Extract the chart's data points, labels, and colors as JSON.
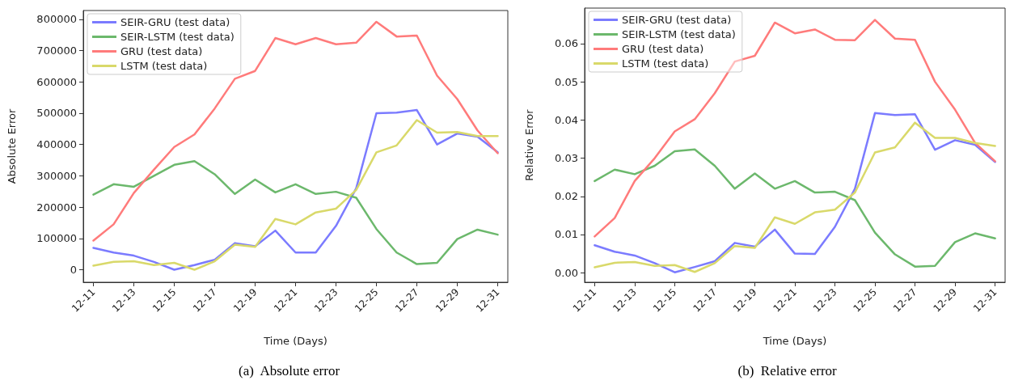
{
  "chart_data": [
    {
      "type": "line",
      "xlabel": "Time (Days)",
      "ylabel": "Absolute Error",
      "annotations": [
        "(a)  Absolute error"
      ],
      "categories": [
        "12-11",
        null,
        "12-13",
        null,
        "12-15",
        null,
        "12-17",
        null,
        "12-19",
        null,
        "12-21",
        null,
        "12-23",
        null,
        "12-25",
        null,
        "12-27",
        null,
        "12-29",
        null,
        "12-31"
      ],
      "ylim": [
        -40000,
        828000
      ],
      "yticks": [
        0,
        100000,
        200000,
        300000,
        400000,
        500000,
        600000,
        700000,
        800000
      ],
      "grid": false,
      "legend": "top left",
      "marker": "none",
      "line_style": "solid",
      "series": [
        {
          "name": "SEIR-GRU (test data)",
          "color": "#7b7bff",
          "values": [
            70000,
            55000,
            45000,
            25000,
            0,
            15000,
            32000,
            85000,
            75000,
            125000,
            55000,
            55000,
            140000,
            260000,
            500000,
            502000,
            510000,
            400000,
            435000,
            425000,
            375000
          ]
        },
        {
          "name": "SEIR-LSTM (test data)",
          "color": "#6cb86c",
          "values": [
            240000,
            273000,
            265000,
            300000,
            335000,
            347000,
            305000,
            242000,
            288000,
            247000,
            273000,
            242000,
            249000,
            230000,
            130000,
            55000,
            18000,
            22000,
            98000,
            128000,
            112000
          ]
        },
        {
          "name": "GRU (test data)",
          "color": "#ff7b7b",
          "values": [
            93000,
            145000,
            245000,
            320000,
            392000,
            432000,
            515000,
            610000,
            635000,
            740000,
            720000,
            740000,
            720000,
            725000,
            792000,
            745000,
            748000,
            620000,
            545000,
            445000,
            372000
          ]
        },
        {
          "name": "LSTM (test data)",
          "color": "#d9d96a",
          "values": [
            13000,
            25000,
            27000,
            15000,
            22000,
            0,
            27000,
            80000,
            73000,
            162000,
            145000,
            183000,
            195000,
            255000,
            375000,
            397000,
            478000,
            438000,
            440000,
            427000,
            427000
          ]
        }
      ]
    },
    {
      "type": "line",
      "xlabel": "Time (Days)",
      "ylabel": "Relative Error",
      "annotations": [
        "(b)  Relative error"
      ],
      "categories": [
        "12-11",
        null,
        "12-13",
        null,
        "12-15",
        null,
        "12-17",
        null,
        "12-19",
        null,
        "12-21",
        null,
        "12-23",
        null,
        "12-25",
        null,
        "12-27",
        null,
        "12-29",
        null,
        "12-31"
      ],
      "ylim": [
        -0.0025,
        0.0693
      ],
      "yticks": [
        {
          "value": 0,
          "label": "0.00"
        },
        {
          "value": 0.01,
          "label": "0.01"
        },
        {
          "value": 0.02,
          "label": "0.02"
        },
        {
          "value": 0.03,
          "label": "0.03"
        },
        {
          "value": 0.04,
          "label": "0.04"
        },
        {
          "value": 0.05,
          "label": "0.05"
        },
        {
          "value": 0.06,
          "label": "0.06"
        }
      ],
      "grid": false,
      "legend": "top left",
      "marker": "none",
      "line_style": "solid",
      "series": [
        {
          "name": "SEIR-GRU (test data)",
          "color": "#7b7bff",
          "values": [
            0.0072,
            0.0055,
            0.0045,
            0.0025,
            0.0001,
            0.0015,
            0.003,
            0.0078,
            0.0068,
            0.0113,
            0.005,
            0.0049,
            0.012,
            0.022,
            0.0418,
            0.0413,
            0.0415,
            0.0322,
            0.0347,
            0.0335,
            0.029
          ]
        },
        {
          "name": "SEIR-LSTM (test data)",
          "color": "#6cb86c",
          "values": [
            0.024,
            0.027,
            0.0258,
            0.028,
            0.0318,
            0.0323,
            0.028,
            0.022,
            0.026,
            0.022,
            0.024,
            0.021,
            0.0212,
            0.019,
            0.0105,
            0.0048,
            0.0016,
            0.0018,
            0.008,
            0.0103,
            0.009
          ]
        },
        {
          "name": "GRU (test data)",
          "color": "#ff7b7b",
          "values": [
            0.0095,
            0.0143,
            0.024,
            0.03,
            0.037,
            0.0402,
            0.047,
            0.0553,
            0.0568,
            0.0655,
            0.0627,
            0.0637,
            0.061,
            0.0609,
            0.0662,
            0.0613,
            0.061,
            0.05,
            0.0427,
            0.034,
            0.0292
          ]
        },
        {
          "name": "LSTM (test data)",
          "color": "#d9d96a",
          "values": [
            0.0014,
            0.0026,
            0.0028,
            0.0018,
            0.002,
            0.0002,
            0.0025,
            0.007,
            0.0065,
            0.0145,
            0.0128,
            0.0158,
            0.0165,
            0.021,
            0.0315,
            0.0328,
            0.0393,
            0.0353,
            0.0353,
            0.034,
            0.0332
          ]
        }
      ]
    }
  ]
}
